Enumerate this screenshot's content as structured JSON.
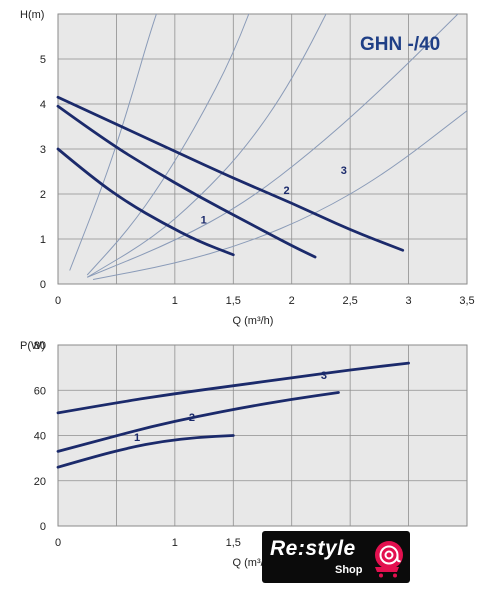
{
  "header": {
    "model": "GHN -/40"
  },
  "chart_data": [
    {
      "type": "line",
      "ylabel": "H(m)",
      "xlabel": "Q (m³/h)",
      "xlim": [
        0,
        3.5
      ],
      "ylim": [
        0,
        6
      ],
      "x_ticks": [
        "0",
        "1",
        "1,5",
        "2",
        "2,5",
        "3",
        "3,5"
      ],
      "x_tick_values": [
        0,
        1,
        1.5,
        2,
        2.5,
        3,
        3.5
      ],
      "y_ticks": [
        "0",
        "1",
        "2",
        "3",
        "4",
        "5"
      ],
      "y_tick_values": [
        0,
        1,
        2,
        3,
        4,
        5
      ],
      "grid": true,
      "series": [
        {
          "name": "1",
          "x": [
            0,
            0.3,
            0.6,
            0.9,
            1.2,
            1.5
          ],
          "y": [
            3.0,
            2.35,
            1.8,
            1.35,
            0.95,
            0.65
          ],
          "color": "#1b2a6b"
        },
        {
          "name": "2",
          "x": [
            0,
            0.4,
            0.8,
            1.2,
            1.6,
            2.0,
            2.2
          ],
          "y": [
            3.95,
            3.2,
            2.55,
            1.95,
            1.4,
            0.85,
            0.6
          ],
          "color": "#1b2a6b"
        },
        {
          "name": "3",
          "x": [
            0,
            0.5,
            1.0,
            1.5,
            2.0,
            2.5,
            2.95
          ],
          "y": [
            4.15,
            3.55,
            2.95,
            2.35,
            1.8,
            1.2,
            0.75
          ],
          "color": "#1b2a6b"
        }
      ],
      "system_curves": [
        {
          "x": [
            0.1,
            0.4,
            0.6,
            0.8,
            0.95
          ],
          "y": [
            0.3,
            2.3,
            3.9,
            5.7,
            6.8
          ]
        },
        {
          "x": [
            0.25,
            0.6,
            0.9,
            1.2,
            1.5,
            1.75
          ],
          "y": [
            0.2,
            1.2,
            2.3,
            3.6,
            5.1,
            6.8
          ]
        },
        {
          "x": [
            0.25,
            0.8,
            1.2,
            1.6,
            2.0,
            2.45
          ],
          "y": [
            0.15,
            1.0,
            1.9,
            3.0,
            4.5,
            6.8
          ]
        },
        {
          "x": [
            0.25,
            1.0,
            1.6,
            2.2,
            2.8,
            3.5
          ],
          "y": [
            0.15,
            0.95,
            1.8,
            3.0,
            4.4,
            6.2
          ]
        },
        {
          "x": [
            0.3,
            1.0,
            1.6,
            2.2,
            2.8,
            3.5
          ],
          "y": [
            0.1,
            0.45,
            0.9,
            1.55,
            2.45,
            3.85
          ]
        }
      ],
      "line_labels": [
        {
          "text": "1",
          "x": 1.22,
          "y": 1.35
        },
        {
          "text": "2",
          "x": 1.93,
          "y": 2.0
        },
        {
          "text": "3",
          "x": 2.42,
          "y": 2.45
        }
      ]
    },
    {
      "type": "line",
      "ylabel": "P(W)",
      "xlabel": "Q (m³/h)",
      "xlim": [
        0,
        3.5
      ],
      "ylim": [
        0,
        80
      ],
      "x_ticks": [
        "0",
        "1",
        "1,5"
      ],
      "x_tick_values": [
        0,
        1,
        1.5
      ],
      "y_ticks": [
        "0",
        "20",
        "40",
        "60",
        "80"
      ],
      "y_tick_values": [
        0,
        20,
        40,
        60,
        80
      ],
      "grid": true,
      "series": [
        {
          "name": "1",
          "x": [
            0,
            0.3,
            0.6,
            0.9,
            1.2,
            1.5
          ],
          "y": [
            26,
            30.5,
            34.5,
            37.5,
            39.2,
            40
          ],
          "color": "#1b2a6b"
        },
        {
          "name": "2",
          "x": [
            0,
            0.4,
            0.8,
            1.2,
            1.6,
            2.0,
            2.4
          ],
          "y": [
            33,
            38.5,
            44,
            48.5,
            52.5,
            56,
            59
          ],
          "color": "#1b2a6b"
        },
        {
          "name": "3",
          "x": [
            0,
            0.5,
            1.0,
            1.5,
            2.0,
            2.5,
            3.0
          ],
          "y": [
            50,
            54.5,
            58.5,
            62,
            65.5,
            69,
            72
          ],
          "color": "#1b2a6b"
        }
      ],
      "line_labels": [
        {
          "text": "1",
          "x": 0.65,
          "y": 37.5
        },
        {
          "text": "2",
          "x": 1.12,
          "y": 46.5
        },
        {
          "text": "3",
          "x": 2.25,
          "y": 65
        }
      ]
    }
  ],
  "badge": {
    "text": "Re:style",
    "subtext": "Shop",
    "icon": "shopping-cart-icon"
  }
}
